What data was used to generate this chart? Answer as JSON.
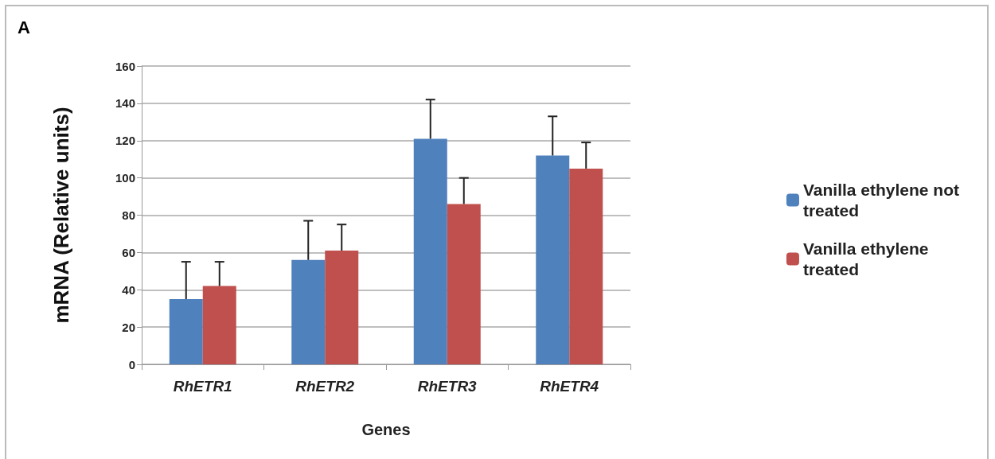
{
  "chart_data": {
    "type": "bar",
    "annotations": [
      "A"
    ],
    "xlabel": "Genes",
    "ylabel": "mRNA (Relative units)",
    "categories": [
      "RhETR1",
      "RhETR2",
      "RhETR3",
      "RhETR4"
    ],
    "series": [
      {
        "name": "Vanilla ethylene not treated",
        "color": "#4f81bd",
        "values": [
          35,
          56,
          121,
          112
        ],
        "errors": [
          [
            35,
            55
          ],
          [
            56,
            77
          ],
          [
            121,
            142
          ],
          [
            112,
            133
          ]
        ]
      },
      {
        "name": "Vanilla ethylene treated",
        "color": "#c0504d",
        "values": [
          42,
          61,
          86,
          105
        ],
        "errors": [
          [
            42,
            55
          ],
          [
            61,
            75
          ],
          [
            86,
            100
          ],
          [
            105,
            119
          ]
        ]
      }
    ],
    "ylim": [
      0,
      160
    ],
    "yticks": [
      0,
      20,
      40,
      60,
      80,
      100,
      120,
      140,
      160
    ],
    "grid": "y",
    "legend": "right"
  }
}
